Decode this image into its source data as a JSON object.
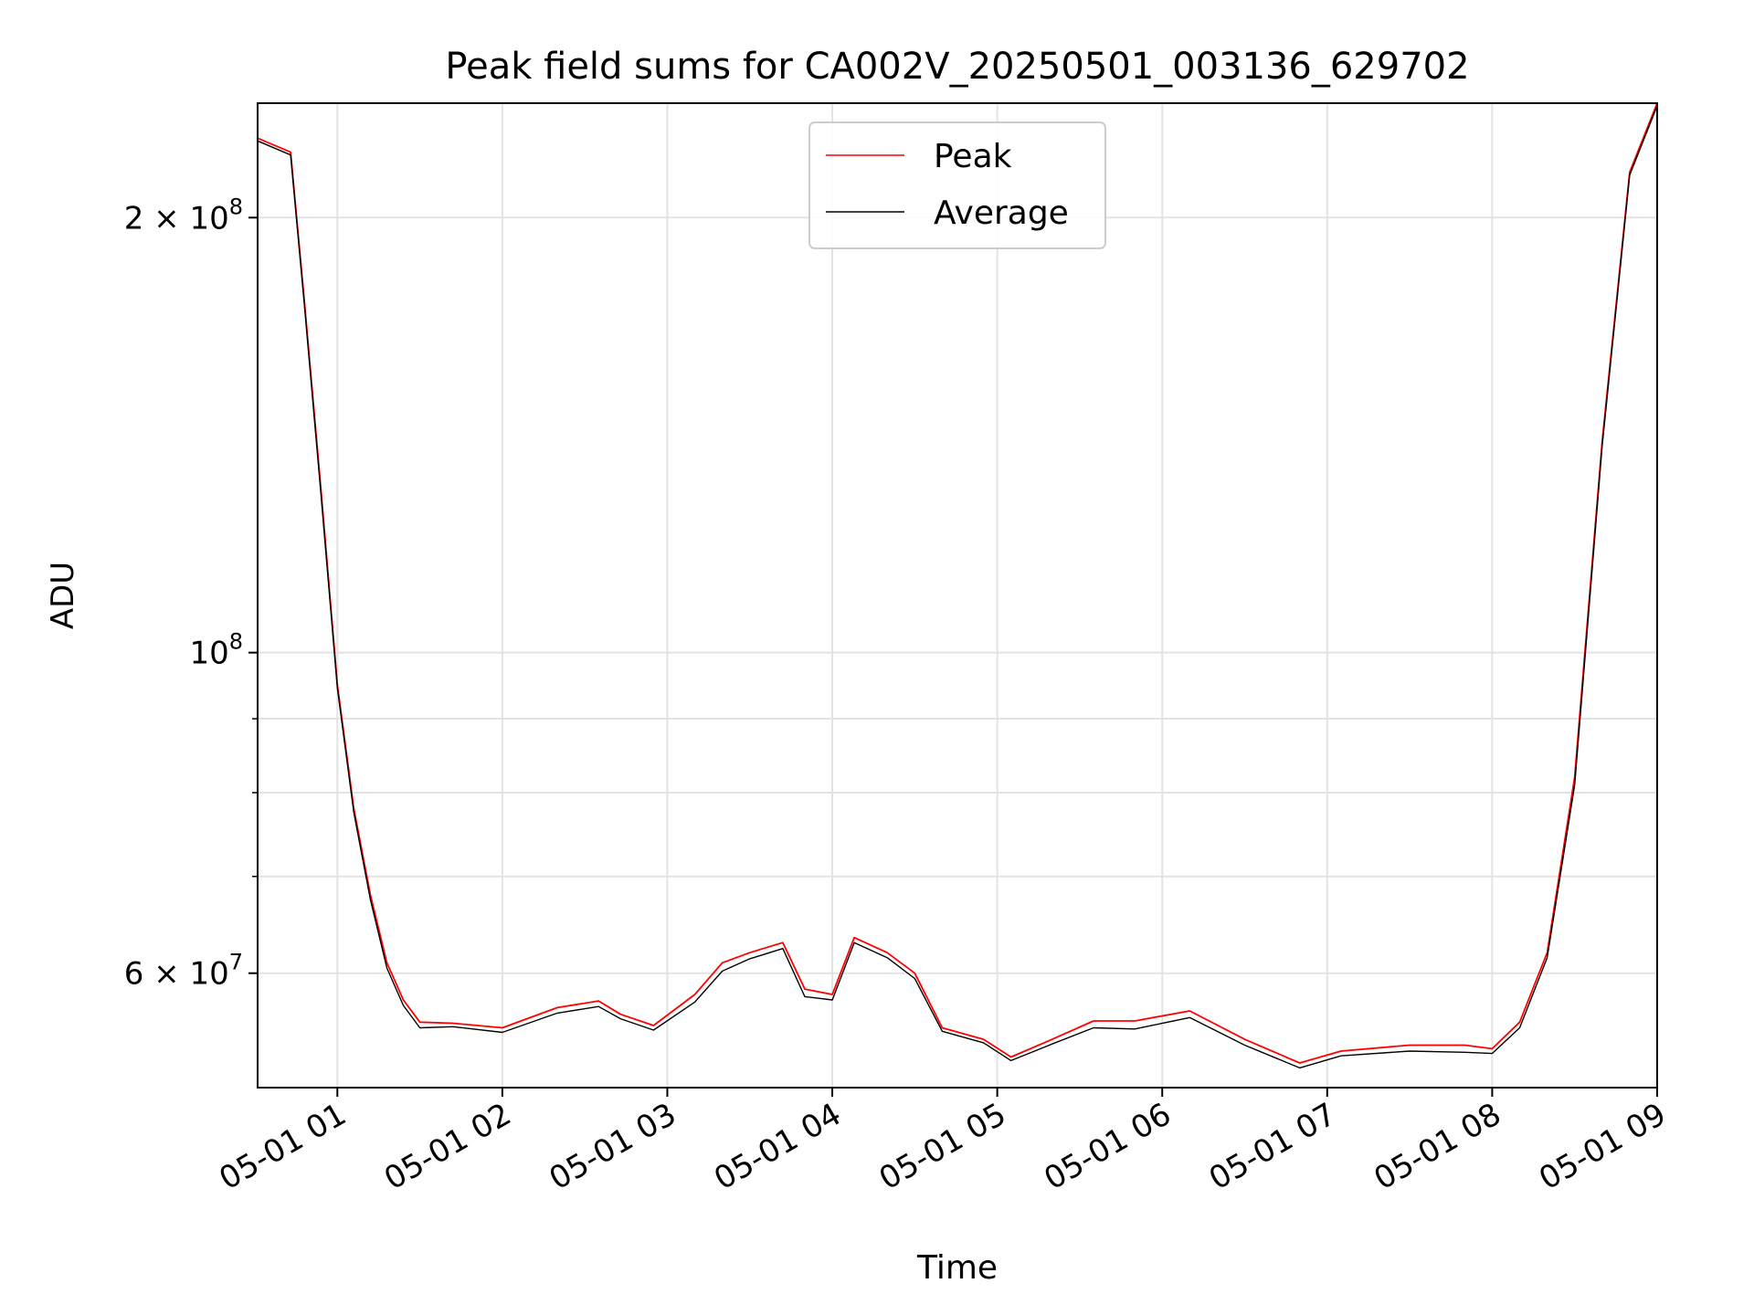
{
  "chart_data": {
    "type": "line",
    "title": "Peak field sums for CA002V_20250501_003136_629702",
    "xlabel": "Time",
    "ylabel": "ADU",
    "y_scale": "log",
    "xlim": [
      "2025-05-01 00:31",
      "2025-05-01 09:00"
    ],
    "ylim": [
      50000000,
      240000000
    ],
    "x_ticks": [
      {
        "value": "2025-05-01 01:00",
        "label": "05-01 01"
      },
      {
        "value": "2025-05-01 02:00",
        "label": "05-01 02"
      },
      {
        "value": "2025-05-01 03:00",
        "label": "05-01 03"
      },
      {
        "value": "2025-05-01 04:00",
        "label": "05-01 04"
      },
      {
        "value": "2025-05-01 05:00",
        "label": "05-01 05"
      },
      {
        "value": "2025-05-01 06:00",
        "label": "05-01 06"
      },
      {
        "value": "2025-05-01 07:00",
        "label": "05-01 07"
      },
      {
        "value": "2025-05-01 08:00",
        "label": "05-01 08"
      },
      {
        "value": "2025-05-01 09:00",
        "label": "05-01 09"
      }
    ],
    "y_ticks": [
      {
        "value": 60000000,
        "base": "6 × 10",
        "exp": "7"
      },
      {
        "value": 100000000,
        "base": "10",
        "exp": "8"
      },
      {
        "value": 200000000,
        "base": "2 × 10",
        "exp": "8"
      }
    ],
    "y_minor_ticks": [
      70000000,
      80000000,
      90000000
    ],
    "grid": true,
    "legend_position": "top-center",
    "series": [
      {
        "name": "Peak",
        "color": "#ff0000",
        "x": [
          "2025-05-01 00:31",
          "2025-05-01 00:43",
          "2025-05-01 00:48",
          "2025-05-01 00:54",
          "2025-05-01 01:00",
          "2025-05-01 01:06",
          "2025-05-01 01:12",
          "2025-05-01 01:18",
          "2025-05-01 01:24",
          "2025-05-01 01:30",
          "2025-05-01 01:42",
          "2025-05-01 02:00",
          "2025-05-01 02:20",
          "2025-05-01 02:35",
          "2025-05-01 02:43",
          "2025-05-01 02:55",
          "2025-05-01 03:10",
          "2025-05-01 03:20",
          "2025-05-01 03:30",
          "2025-05-01 03:42",
          "2025-05-01 03:50",
          "2025-05-01 04:00",
          "2025-05-01 04:08",
          "2025-05-01 04:20",
          "2025-05-01 04:30",
          "2025-05-01 04:40",
          "2025-05-01 04:55",
          "2025-05-01 05:05",
          "2025-05-01 05:20",
          "2025-05-01 05:35",
          "2025-05-01 05:50",
          "2025-05-01 06:10",
          "2025-05-01 06:30",
          "2025-05-01 06:50",
          "2025-05-01 07:05",
          "2025-05-01 07:30",
          "2025-05-01 07:50",
          "2025-05-01 08:00",
          "2025-05-01 08:10",
          "2025-05-01 08:20",
          "2025-05-01 08:30",
          "2025-05-01 08:40",
          "2025-05-01 08:50",
          "2025-05-01 09:00"
        ],
        "values": [
          227000000,
          222000000,
          175000000,
          130000000,
          95000000,
          78000000,
          68000000,
          61000000,
          57500000,
          55500000,
          55400000,
          55000000,
          56800000,
          57400000,
          56200000,
          55200000,
          58000000,
          61000000,
          62000000,
          63000000,
          58500000,
          58000000,
          63500000,
          62000000,
          60000000,
          55000000,
          54000000,
          52500000,
          54000000,
          55600000,
          55600000,
          56500000,
          54000000,
          52000000,
          53000000,
          53500000,
          53500000,
          53200000,
          55500000,
          62000000,
          82000000,
          140000000,
          215000000,
          240000000
        ]
      },
      {
        "name": "Average",
        "color": "#000000",
        "x": [
          "2025-05-01 00:31",
          "2025-05-01 00:43",
          "2025-05-01 00:48",
          "2025-05-01 00:54",
          "2025-05-01 01:00",
          "2025-05-01 01:06",
          "2025-05-01 01:12",
          "2025-05-01 01:18",
          "2025-05-01 01:24",
          "2025-05-01 01:30",
          "2025-05-01 01:42",
          "2025-05-01 02:00",
          "2025-05-01 02:20",
          "2025-05-01 02:35",
          "2025-05-01 02:43",
          "2025-05-01 02:55",
          "2025-05-01 03:10",
          "2025-05-01 03:20",
          "2025-05-01 03:30",
          "2025-05-01 03:42",
          "2025-05-01 03:50",
          "2025-05-01 04:00",
          "2025-05-01 04:08",
          "2025-05-01 04:20",
          "2025-05-01 04:30",
          "2025-05-01 04:40",
          "2025-05-01 04:55",
          "2025-05-01 05:05",
          "2025-05-01 05:20",
          "2025-05-01 05:35",
          "2025-05-01 05:50",
          "2025-05-01 06:10",
          "2025-05-01 06:30",
          "2025-05-01 06:50",
          "2025-05-01 07:05",
          "2025-05-01 07:30",
          "2025-05-01 07:50",
          "2025-05-01 08:00",
          "2025-05-01 08:10",
          "2025-05-01 08:20",
          "2025-05-01 08:30",
          "2025-05-01 08:40",
          "2025-05-01 08:50",
          "2025-05-01 09:00"
        ],
        "values": [
          226000000,
          221000000,
          174000000,
          129000000,
          94500000,
          77500000,
          67500000,
          60500000,
          57000000,
          55000000,
          55100000,
          54600000,
          56300000,
          56900000,
          55800000,
          54800000,
          57300000,
          60200000,
          61400000,
          62400000,
          57800000,
          57500000,
          63000000,
          61500000,
          59500000,
          54700000,
          53700000,
          52200000,
          53600000,
          55000000,
          54900000,
          55900000,
          53500000,
          51600000,
          52600000,
          53000000,
          52900000,
          52800000,
          55000000,
          61500000,
          81000000,
          139000000,
          214000000,
          239000000
        ]
      }
    ]
  }
}
